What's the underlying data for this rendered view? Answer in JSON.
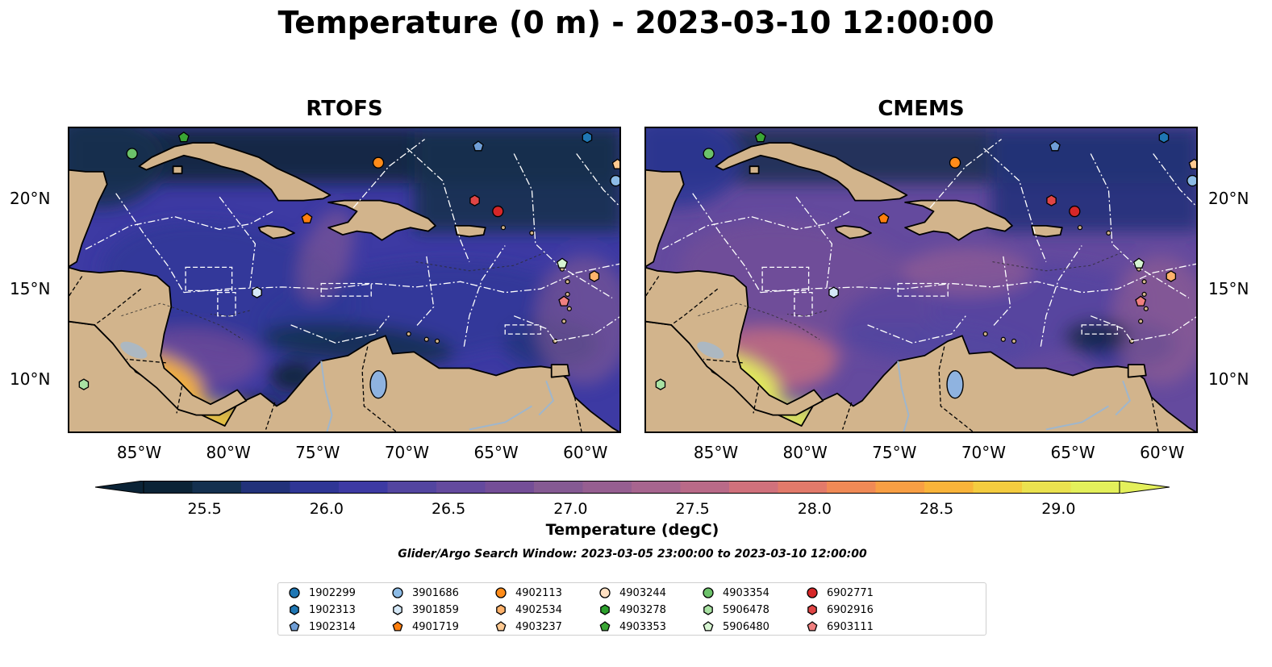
{
  "title": "Temperature (0 m) - 2023-03-10 12:00:00",
  "panels": [
    {
      "title": "RTOFS",
      "variant": "rtofs"
    },
    {
      "title": "CMEMS",
      "variant": "cmems"
    }
  ],
  "axes": {
    "lon_ticks": [
      "85°W",
      "80°W",
      "75°W",
      "70°W",
      "65°W",
      "60°W"
    ],
    "lat_ticks": [
      "20°N",
      "15°N",
      "10°N"
    ],
    "extent_deg": {
      "lon": [
        -89,
        -58
      ],
      "lat": [
        7,
        24
      ]
    }
  },
  "colorbar": {
    "label": "Temperature (degC)",
    "ticks": [
      "25.5",
      "26.0",
      "26.5",
      "27.0",
      "27.5",
      "28.0",
      "28.5",
      "29.0"
    ],
    "range": [
      25.25,
      29.25
    ],
    "colors": [
      "#0b2336",
      "#14304f",
      "#22327a",
      "#2f3695",
      "#3d3aa3",
      "#5345a0",
      "#644a9e",
      "#744e97",
      "#855a93",
      "#965f91",
      "#a7658f",
      "#b96a88",
      "#d0717c",
      "#e27a6a",
      "#f08a56",
      "#f89f44",
      "#f9b43a",
      "#f4cc3f",
      "#ebe24f",
      "#e4f05b"
    ]
  },
  "search_window": "Glider/Argo Search Window: 2023-03-05 23:00:00 to 2023-03-10 12:00:00",
  "floats": [
    {
      "id": "1902299",
      "marker": "circle",
      "color": "#1f77b4"
    },
    {
      "id": "1902313",
      "marker": "hexagon",
      "color": "#1f77b4"
    },
    {
      "id": "1902314",
      "marker": "pentagon",
      "color": "#6f9ed6"
    },
    {
      "id": "3901686",
      "marker": "circle",
      "color": "#8cbbe6"
    },
    {
      "id": "3901859",
      "marker": "hexagon",
      "color": "#d5e8f7"
    },
    {
      "id": "4901719",
      "marker": "pentagon",
      "color": "#ff7f0e"
    },
    {
      "id": "4902113",
      "marker": "circle",
      "color": "#ff8c1a"
    },
    {
      "id": "4902534",
      "marker": "hexagon",
      "color": "#ffb26b"
    },
    {
      "id": "4903237",
      "marker": "pentagon",
      "color": "#ffc991"
    },
    {
      "id": "4903244",
      "marker": "circle",
      "color": "#ffe0c2"
    },
    {
      "id": "4903278",
      "marker": "hexagon",
      "color": "#2ca02c"
    },
    {
      "id": "4903353",
      "marker": "pentagon",
      "color": "#3aa635"
    },
    {
      "id": "4903354",
      "marker": "circle",
      "color": "#6cc26a"
    },
    {
      "id": "5906478",
      "marker": "hexagon",
      "color": "#a9e2a3"
    },
    {
      "id": "5906480",
      "marker": "pentagon",
      "color": "#d7f5d2"
    },
    {
      "id": "6902771",
      "marker": "circle",
      "color": "#d62728"
    },
    {
      "id": "6902916",
      "marker": "hexagon",
      "color": "#e04545"
    },
    {
      "id": "6903111",
      "marker": "pentagon",
      "color": "#f08080"
    }
  ],
  "float_positions": [
    {
      "id": "4903353",
      "lon": -82.5,
      "lat": 23.4
    },
    {
      "id": "4903354",
      "lon": -85.4,
      "lat": 22.5
    },
    {
      "id": "1902314",
      "lon": -66.0,
      "lat": 22.9
    },
    {
      "id": "4902113",
      "lon": -71.6,
      "lat": 22.0
    },
    {
      "id": "1902313",
      "lon": -59.9,
      "lat": 23.4
    },
    {
      "id": "6902916",
      "lon": -66.2,
      "lat": 19.9
    },
    {
      "id": "6902771",
      "lon": -64.9,
      "lat": 19.3
    },
    {
      "id": "4901719",
      "lon": -75.6,
      "lat": 18.9
    },
    {
      "id": "3901859",
      "lon": -78.4,
      "lat": 14.8
    },
    {
      "id": "4902534",
      "lon": -59.5,
      "lat": 15.7
    },
    {
      "id": "6903111",
      "lon": -61.2,
      "lat": 14.3
    },
    {
      "id": "5906478",
      "lon": -88.1,
      "lat": 9.7
    },
    {
      "id": "3901686",
      "lon": -58.3,
      "lat": 21.0
    },
    {
      "id": "4903237",
      "lon": -58.2,
      "lat": 21.9
    },
    {
      "id": "5906480",
      "lon": -61.3,
      "lat": 16.4
    }
  ]
}
